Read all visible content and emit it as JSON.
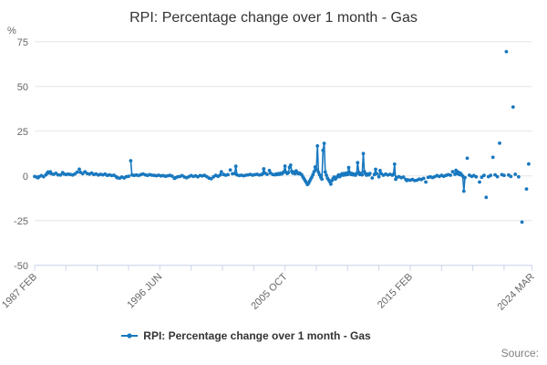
{
  "header": {
    "title": "RPI: Percentage change over 1 month - Gas"
  },
  "legend": {
    "label": "RPI: Percentage change over 1 month - Gas"
  },
  "footer": {
    "source_label": "Source:"
  },
  "chart_data": {
    "type": "line",
    "title": "RPI: Percentage change over 1 month - Gas",
    "unit_label": "%",
    "series_name": "RPI: Percentage change over 1 month - Gas",
    "color": "#1878bf",
    "grid": "horizontal-only",
    "legend_position": "bottom-center",
    "x_start": "1987-02",
    "x_end": "2024-03",
    "total_months": 445,
    "minor_tick_every_months": 28,
    "x_label_rotation": -45,
    "x_tick_labels": [
      {
        "label": "1987 FEB",
        "month": 0
      },
      {
        "label": "1996 JUN",
        "month": 112
      },
      {
        "label": "2005 OCT",
        "month": 224
      },
      {
        "label": "2015 FEB",
        "month": 336
      },
      {
        "label": "2024 MAR",
        "month": 445
      }
    ],
    "ylim": [
      -50,
      75
    ],
    "yticks": [
      75,
      50,
      25,
      0,
      -25,
      -50
    ],
    "points_format": "[months_since_1987_02, percent_change]",
    "points": [
      [
        0,
        -0.3
      ],
      [
        2,
        -0.7
      ],
      [
        3,
        -1.0
      ],
      [
        4,
        -0.4
      ],
      [
        6,
        0.2
      ],
      [
        8,
        -0.4
      ],
      [
        10,
        0.6
      ],
      [
        11,
        1.4
      ],
      [
        12,
        2.2
      ],
      [
        13,
        1.7
      ],
      [
        14,
        2.3
      ],
      [
        15,
        1.2
      ],
      [
        17,
        0.9
      ],
      [
        19,
        1.5
      ],
      [
        21,
        0.6
      ],
      [
        23,
        0.5
      ],
      [
        25,
        1.9
      ],
      [
        26,
        1.1
      ],
      [
        28,
        0.8
      ],
      [
        30,
        1.0
      ],
      [
        32,
        0.8
      ],
      [
        34,
        0.5
      ],
      [
        36,
        1.1
      ],
      [
        38,
        2.1
      ],
      [
        40,
        3.8
      ],
      [
        41,
        2.0
      ],
      [
        43,
        1.3
      ],
      [
        45,
        2.3
      ],
      [
        47,
        1.4
      ],
      [
        49,
        1.0
      ],
      [
        51,
        1.6
      ],
      [
        53,
        0.8
      ],
      [
        55,
        1.1
      ],
      [
        57,
        0.5
      ],
      [
        59,
        0.9
      ],
      [
        61,
        0.6
      ],
      [
        63,
        1.0
      ],
      [
        65,
        0.3
      ],
      [
        67,
        0.6
      ],
      [
        69,
        0.2
      ],
      [
        71,
        0.4
      ],
      [
        73,
        -0.5
      ],
      [
        74,
        -1.0
      ],
      [
        76,
        -1.3
      ],
      [
        78,
        -0.6
      ],
      [
        80,
        -1.1
      ],
      [
        82,
        -0.4
      ],
      [
        84,
        -0.2
      ],
      [
        86,
        8.5
      ],
      [
        87,
        0.5
      ],
      [
        89,
        0.3
      ],
      [
        91,
        0.5
      ],
      [
        93,
        0.2
      ],
      [
        95,
        0.7
      ],
      [
        97,
        1.1
      ],
      [
        99,
        0.6
      ],
      [
        101,
        0.3
      ],
      [
        103,
        0.7
      ],
      [
        105,
        0.4
      ],
      [
        107,
        0.3
      ],
      [
        109,
        0.1
      ],
      [
        111,
        0.4
      ],
      [
        113,
        0.0
      ],
      [
        115,
        0.2
      ],
      [
        117,
        -0.2
      ],
      [
        119,
        0.1
      ],
      [
        121,
        0.3
      ],
      [
        123,
        -0.1
      ],
      [
        125,
        -1.4
      ],
      [
        126,
        -1.0
      ],
      [
        128,
        -0.5
      ],
      [
        130,
        -0.3
      ],
      [
        132,
        0.2
      ],
      [
        134,
        -0.6
      ],
      [
        136,
        -1.0
      ],
      [
        138,
        -0.4
      ],
      [
        140,
        0.2
      ],
      [
        142,
        -0.3
      ],
      [
        144,
        0.1
      ],
      [
        146,
        -0.5
      ],
      [
        148,
        0.2
      ],
      [
        150,
        0.0
      ],
      [
        152,
        0.3
      ],
      [
        154,
        -0.4
      ],
      [
        156,
        -1.2
      ],
      [
        158,
        -1.6
      ],
      [
        160,
        -0.5
      ],
      [
        162,
        0.3
      ],
      [
        164,
        -0.2
      ],
      [
        166,
        0.5
      ],
      [
        167,
        2.3
      ],
      [
        169,
        0.8
      ],
      [
        171,
        0.4
      ],
      [
        173,
        0.7
      ],
      [
        175,
        3.3
      ],
      [
        177,
        1.2
      ],
      [
        179,
        1.4
      ],
      [
        180,
        5.4
      ],
      [
        181,
        0.6
      ],
      [
        183,
        0.2
      ],
      [
        185,
        0.4
      ],
      [
        187,
        0.1
      ],
      [
        189,
        0.4
      ],
      [
        191,
        0.6
      ],
      [
        193,
        0.8
      ],
      [
        195,
        0.4
      ],
      [
        197,
        0.7
      ],
      [
        199,
        0.9
      ],
      [
        201,
        0.5
      ],
      [
        203,
        0.7
      ],
      [
        204,
        1.2
      ],
      [
        205,
        4.0
      ],
      [
        206,
        1.6
      ],
      [
        208,
        0.9
      ],
      [
        210,
        3.0
      ],
      [
        211,
        1.6
      ],
      [
        213,
        0.8
      ],
      [
        215,
        0.6
      ],
      [
        216,
        1.1
      ],
      [
        217,
        0.8
      ],
      [
        218,
        1.3
      ],
      [
        219,
        0.9
      ],
      [
        220,
        1.5
      ],
      [
        221,
        1.1
      ],
      [
        222,
        1.7
      ],
      [
        223,
        2.4
      ],
      [
        224,
        5.5
      ],
      [
        225,
        2.0
      ],
      [
        226,
        1.4
      ],
      [
        227,
        1.8
      ],
      [
        228,
        4.8
      ],
      [
        229,
        6.0
      ],
      [
        230,
        2.6
      ],
      [
        231,
        1.6
      ],
      [
        232,
        2.2
      ],
      [
        233,
        1.2
      ],
      [
        234,
        2.8
      ],
      [
        235,
        1.8
      ],
      [
        236,
        1.2
      ],
      [
        237,
        1.6
      ],
      [
        238,
        1.0
      ],
      [
        239,
        0.6
      ],
      [
        240,
        -0.6
      ],
      [
        241,
        -1.6
      ],
      [
        242,
        -2.6
      ],
      [
        243,
        -3.6
      ],
      [
        244,
        -4.8
      ],
      [
        245,
        -4.2
      ],
      [
        246,
        -3.0
      ],
      [
        247,
        -1.8
      ],
      [
        248,
        -0.6
      ],
      [
        249,
        0.8
      ],
      [
        250,
        2.4
      ],
      [
        251,
        5.0
      ],
      [
        252,
        3.4
      ],
      [
        253,
        16.8
      ],
      [
        254,
        2.0
      ],
      [
        255,
        0.6
      ],
      [
        256,
        -0.8
      ],
      [
        257,
        -1.8
      ],
      [
        258,
        14.3
      ],
      [
        259,
        18.2
      ],
      [
        260,
        2.2
      ],
      [
        261,
        0.4
      ],
      [
        262,
        -1.2
      ],
      [
        263,
        -2.2
      ],
      [
        264,
        -3.2
      ],
      [
        265,
        -4.6
      ],
      [
        266,
        -2.6
      ],
      [
        267,
        -1.4
      ],
      [
        268,
        -0.6
      ],
      [
        269,
        -1.8
      ],
      [
        270,
        -1.0
      ],
      [
        271,
        -0.2
      ],
      [
        272,
        0.6
      ],
      [
        273,
        -0.4
      ],
      [
        274,
        0.4
      ],
      [
        275,
        1.2
      ],
      [
        276,
        0.4
      ],
      [
        277,
        1.4
      ],
      [
        278,
        0.6
      ],
      [
        279,
        1.6
      ],
      [
        280,
        0.8
      ],
      [
        281,
        4.7
      ],
      [
        282,
        1.8
      ],
      [
        283,
        0.8
      ],
      [
        284,
        1.4
      ],
      [
        285,
        0.6
      ],
      [
        286,
        1.0
      ],
      [
        287,
        0.4
      ],
      [
        288,
        1.2
      ],
      [
        289,
        7.4
      ],
      [
        290,
        2.0
      ],
      [
        291,
        0.8
      ],
      [
        292,
        1.4
      ],
      [
        293,
        0.6
      ],
      [
        294,
        12.5
      ],
      [
        295,
        2.4
      ],
      [
        296,
        1.2
      ],
      [
        297,
        0.4
      ],
      [
        298,
        1.0
      ],
      [
        299,
        0.6
      ],
      [
        300,
        1.4
      ],
      [
        302,
        -1.1
      ],
      [
        304,
        0.8
      ],
      [
        305,
        3.7
      ],
      [
        306,
        1.2
      ],
      [
        308,
        -0.5
      ],
      [
        309,
        3.0
      ],
      [
        310,
        1.4
      ],
      [
        312,
        0.4
      ],
      [
        314,
        1.0
      ],
      [
        316,
        0.5
      ],
      [
        318,
        0.9
      ],
      [
        320,
        0.4
      ],
      [
        321,
        0.9
      ],
      [
        322,
        6.6
      ],
      [
        323,
        -1.9
      ],
      [
        324,
        -0.8
      ],
      [
        326,
        -0.4
      ],
      [
        328,
        -1.0
      ],
      [
        330,
        -0.6
      ],
      [
        332,
        -2.0
      ],
      [
        333,
        -2.6
      ],
      [
        334,
        -2.2
      ],
      [
        336,
        -2.4
      ],
      [
        338,
        -2.0
      ],
      [
        340,
        -2.6
      ],
      [
        342,
        -2.4
      ],
      [
        344,
        -1.8
      ],
      [
        346,
        -2.0
      ],
      [
        348,
        -1.4
      ],
      [
        350,
        -3.4
      ],
      [
        352,
        -0.8
      ],
      [
        354,
        -0.5
      ],
      [
        356,
        -0.9
      ],
      [
        358,
        -0.4
      ],
      [
        360,
        0.2
      ],
      [
        362,
        -0.3
      ],
      [
        364,
        0.3
      ],
      [
        366,
        -0.2
      ],
      [
        368,
        0.3
      ],
      [
        370,
        0.7
      ],
      [
        372,
        0.4
      ],
      [
        374,
        2.4
      ],
      [
        376,
        0.9
      ],
      [
        377,
        3.1
      ],
      [
        378,
        1.3
      ],
      [
        379,
        2.2
      ],
      [
        380,
        0.7
      ],
      [
        381,
        1.5
      ],
      [
        382,
        0.5
      ],
      [
        383,
        -0.1
      ],
      [
        384,
        -8.5
      ],
      [
        385,
        -0.9
      ],
      [
        387,
        9.9
      ],
      [
        389,
        0.4
      ],
      [
        391,
        -0.3
      ],
      [
        393,
        0.2
      ],
      [
        395,
        -0.5
      ],
      [
        398,
        -3.4
      ],
      [
        400,
        -0.7
      ],
      [
        402,
        0.3
      ],
      [
        404,
        -12.0
      ],
      [
        406,
        -0.4
      ],
      [
        408,
        0.3
      ],
      [
        410,
        10.4
      ],
      [
        412,
        0.6
      ],
      [
        414,
        -0.4
      ],
      [
        416,
        18.3
      ],
      [
        418,
        0.7
      ],
      [
        420,
        0.3
      ],
      [
        422,
        69.5
      ],
      [
        424,
        0.5
      ],
      [
        426,
        -0.3
      ],
      [
        428,
        38.5
      ],
      [
        430,
        0.9
      ],
      [
        433,
        -0.5
      ],
      [
        436,
        -25.8
      ],
      [
        440,
        -7.3
      ],
      [
        442,
        6.7
      ]
    ]
  }
}
